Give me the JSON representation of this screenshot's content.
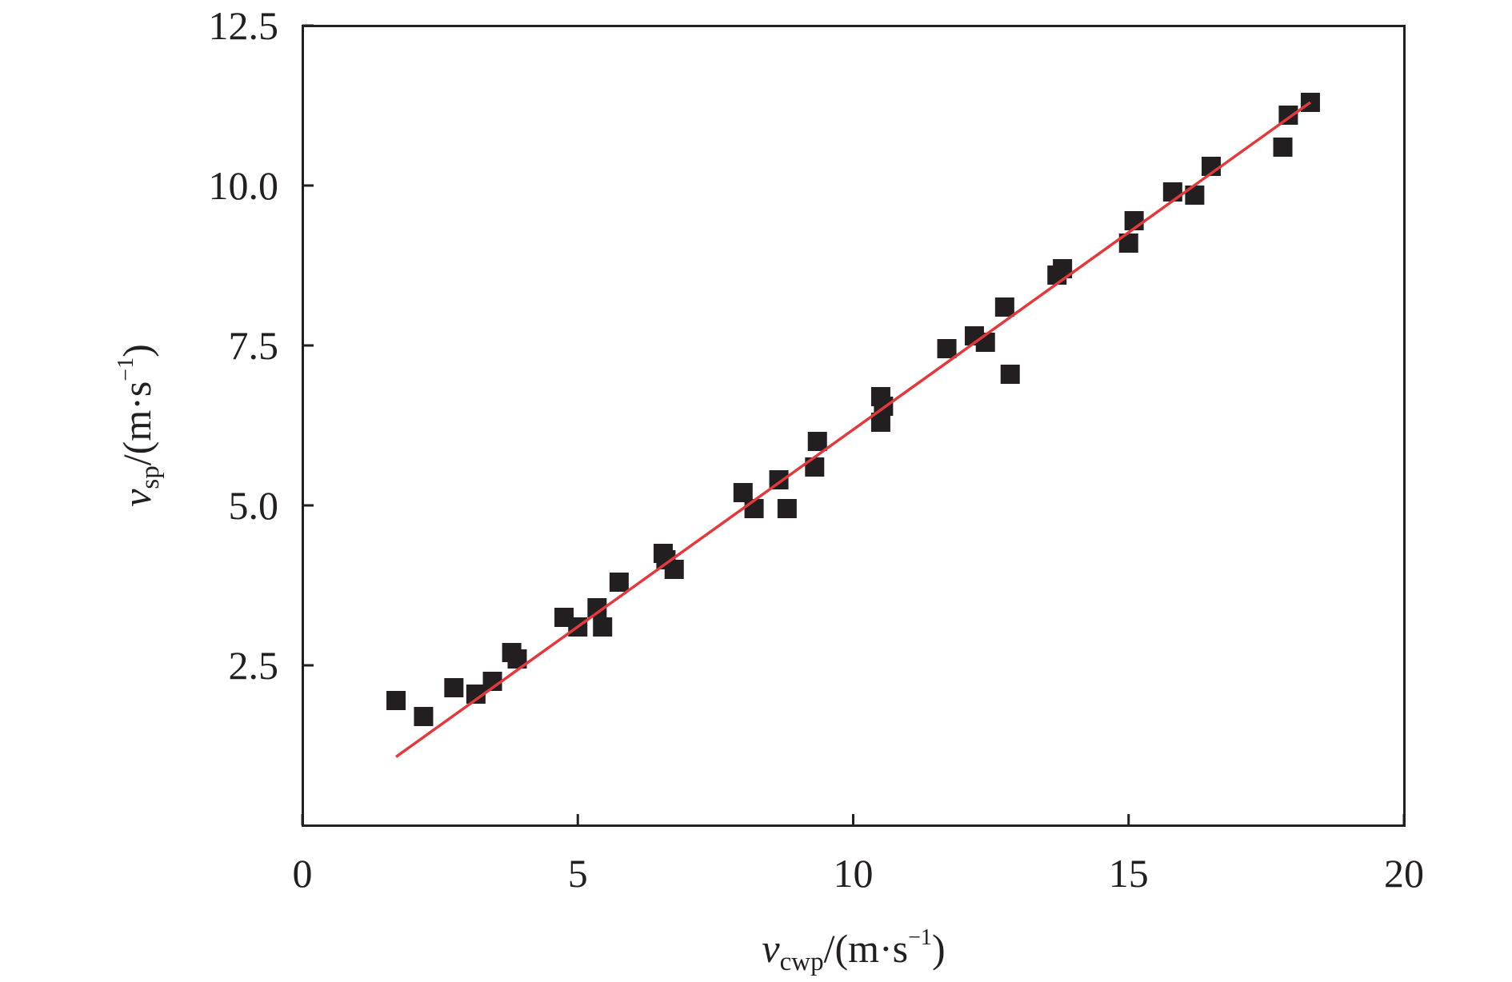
{
  "chart_data": {
    "type": "scatter",
    "title": "",
    "xlabel": {
      "var": "v",
      "sub": "cwp",
      "unit_open": "/(m·s",
      "sup": "−1",
      "unit_close": ")"
    },
    "ylabel": {
      "var": "v",
      "sub": "sp",
      "unit_open": "/(m·s",
      "sup": "−1",
      "unit_close": ")"
    },
    "xlim": [
      0,
      20
    ],
    "ylim": [
      0,
      12.5
    ],
    "xticks": [
      0,
      5,
      10,
      15,
      20
    ],
    "xtick_labels": [
      "0",
      "5",
      "10",
      "15",
      "20"
    ],
    "yticks": [
      2.5,
      5.0,
      7.5,
      10.0,
      12.5
    ],
    "ytick_labels": [
      "2.5",
      "5.0",
      "7.5",
      "10.0",
      "12.5"
    ],
    "grid": false,
    "marker_color": "#231f20",
    "fit_line_color": "#e03a3e",
    "points": [
      [
        1.7,
        1.95
      ],
      [
        2.2,
        1.7
      ],
      [
        2.75,
        2.15
      ],
      [
        3.15,
        2.05
      ],
      [
        3.45,
        2.25
      ],
      [
        3.8,
        2.7
      ],
      [
        3.9,
        2.6
      ],
      [
        4.75,
        3.25
      ],
      [
        5.0,
        3.1
      ],
      [
        5.35,
        3.4
      ],
      [
        5.45,
        3.1
      ],
      [
        5.75,
        3.8
      ],
      [
        6.55,
        4.25
      ],
      [
        6.6,
        4.15
      ],
      [
        6.75,
        4.0
      ],
      [
        8.0,
        5.2
      ],
      [
        8.2,
        4.95
      ],
      [
        8.65,
        5.4
      ],
      [
        8.8,
        4.95
      ],
      [
        9.3,
        5.6
      ],
      [
        9.35,
        6.0
      ],
      [
        10.5,
        6.3
      ],
      [
        10.5,
        6.7
      ],
      [
        10.55,
        6.55
      ],
      [
        11.7,
        7.45
      ],
      [
        12.2,
        7.65
      ],
      [
        12.4,
        7.55
      ],
      [
        12.75,
        8.1
      ],
      [
        12.85,
        7.05
      ],
      [
        13.7,
        8.6
      ],
      [
        13.8,
        8.7
      ],
      [
        15.0,
        9.1
      ],
      [
        15.1,
        9.45
      ],
      [
        15.8,
        9.9
      ],
      [
        16.2,
        9.85
      ],
      [
        16.5,
        10.3
      ],
      [
        17.8,
        10.6
      ],
      [
        17.9,
        11.1
      ],
      [
        18.3,
        11.3
      ]
    ],
    "fit_line": {
      "x": [
        1.7,
        18.3
      ],
      "y": [
        1.07,
        11.3
      ]
    }
  }
}
